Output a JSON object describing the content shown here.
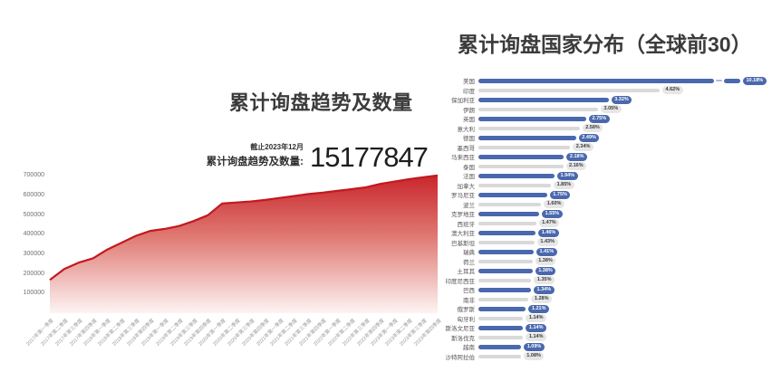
{
  "left_panel": {
    "title": "累计询盘趋势及数量",
    "stat": {
      "caption_line1": "截止2023年12月",
      "caption_line2": "累计询盘趋势及数量:",
      "value": "15177847"
    }
  },
  "right_panel": {
    "title": "累计询盘国家分布（全球前30）"
  },
  "colors": {
    "area_line": "#c2191f",
    "area_fill_top": "#c9262c",
    "area_fill_mid": "#e07a74",
    "area_fill_bottom": "#fdf4f3",
    "bar_blue": "#4a68ae",
    "bar_gray": "#d9d9d9",
    "axis_text": "#9a9a9a"
  },
  "chart_data": [
    {
      "type": "area",
      "title": "累计询盘趋势及数量",
      "xlabel": "",
      "ylabel": "",
      "ylim": [
        0,
        730000
      ],
      "y_ticks": [
        100000,
        200000,
        300000,
        400000,
        500000,
        600000,
        700000
      ],
      "grid": false,
      "categories": [
        "2017年第一季度",
        "2017年第二季度",
        "2017年第三季度",
        "2017年第四季度",
        "2018年第一季度",
        "2018年第二季度",
        "2018年第三季度",
        "2018年第四季度",
        "2019年第一季度",
        "2019年第二季度",
        "2019年第三季度",
        "2019年第四季度",
        "2020年第一季度",
        "2020年第二季度",
        "2020年第三季度",
        "2020年第四季度",
        "2021年第一季度",
        "2021年第二季度",
        "2021年第三季度",
        "2021年第四季度",
        "2022年第一季度",
        "2022年第二季度",
        "2022年第三季度",
        "2022年第四季度",
        "2023年第一季度",
        "2023年第二季度",
        "2023年第三季度",
        "2023年第四季度"
      ],
      "values": [
        170000,
        225000,
        258000,
        280000,
        325000,
        360000,
        395000,
        420000,
        430000,
        445000,
        470000,
        500000,
        560000,
        565000,
        570000,
        578000,
        588000,
        598000,
        608000,
        615000,
        624000,
        633000,
        642000,
        660000,
        672000,
        684000,
        694000,
        703000
      ]
    },
    {
      "type": "bar",
      "orientation": "horizontal",
      "title": "累计询盘国家分布（全球前30）",
      "legend_position": "none",
      "axis_break_on_first_bar": true,
      "categories": [
        "美国",
        "印度",
        "保加利亚",
        "伊朗",
        "英国",
        "意大利",
        "德国",
        "墨西哥",
        "马来西亚",
        "泰国",
        "法国",
        "加拿大",
        "罗马尼亚",
        "波兰",
        "克罗地亚",
        "西班牙",
        "澳大利亚",
        "巴基斯坦",
        "瑞典",
        "荷兰",
        "土耳其",
        "印度尼西亚",
        "巴西",
        "南非",
        "俄罗斯",
        "匈牙利",
        "斯洛文尼亚",
        "斯洛伐克",
        "越南",
        "沙特阿拉伯"
      ],
      "values": [
        10.18,
        4.62,
        3.32,
        3.05,
        2.75,
        2.58,
        2.49,
        2.34,
        2.18,
        2.16,
        1.94,
        1.85,
        1.75,
        1.6,
        1.55,
        1.47,
        1.46,
        1.43,
        1.41,
        1.38,
        1.38,
        1.35,
        1.34,
        1.28,
        1.21,
        1.14,
        1.14,
        1.14,
        1.09,
        1.08
      ],
      "value_labels": [
        "10.18%",
        "4.62%",
        "3.32%",
        "3.05%",
        "2.75%",
        "2.58%",
        "2.49%",
        "2.34%",
        "2.18%",
        "2.16%",
        "1.94%",
        "1.85%",
        "1.75%",
        "1.60%",
        "1.55%",
        "1.47%",
        "1.46%",
        "1.43%",
        "1.41%",
        "1.38%",
        "1.38%",
        "1.35%",
        "1.34%",
        "1.28%",
        "1.21%",
        "1.14%",
        "1.14%",
        "1.14%",
        "1.09%",
        "1.08%"
      ]
    }
  ]
}
